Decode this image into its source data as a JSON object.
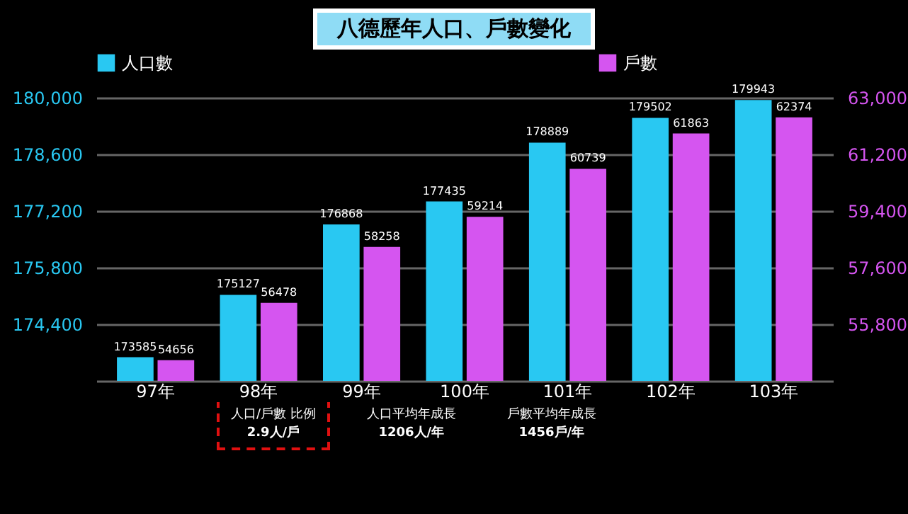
{
  "chart_data": {
    "type": "bar",
    "title": "八德歷年人口、戶數變化",
    "categories": [
      "97年",
      "98年",
      "99年",
      "100年",
      "101年",
      "102年",
      "103年"
    ],
    "series": [
      {
        "name": "人口數",
        "color": "#29c8f2",
        "values": [
          173585,
          175127,
          176868,
          177435,
          178889,
          179502,
          179943
        ]
      },
      {
        "name": "戶數",
        "color": "#d555f0",
        "axis": "y2",
        "values": [
          54656,
          56478,
          58258,
          59214,
          60739,
          61863,
          62374
        ]
      }
    ],
    "ylim": [
      173000,
      180000
    ],
    "yticks": [
      {
        "value": 173000,
        "label": null
      },
      {
        "value": 174400,
        "label": "174,400"
      },
      {
        "value": 175800,
        "label": "175,800"
      },
      {
        "value": 177200,
        "label": "177,200"
      },
      {
        "value": 178600,
        "label": "178,600"
      },
      {
        "value": 180000,
        "label": "180,000"
      }
    ],
    "y2lim": [
      54000,
      63000
    ],
    "y2ticks": [
      {
        "value": 54000,
        "label": null
      },
      {
        "value": 55800,
        "label": "55,800"
      },
      {
        "value": 57600,
        "label": "57,600"
      },
      {
        "value": 59400,
        "label": "59,400"
      },
      {
        "value": 61200,
        "label": "61,200"
      },
      {
        "value": 63000,
        "label": "63,000"
      }
    ],
    "data_labels": true,
    "grid": "y",
    "legend": "top",
    "annotations": [
      "人口/戶數 比例\n2.9人/戶",
      "人口平均年成長\n1206人/年",
      "戶數平均年成長\n1456戶/年"
    ]
  }
}
